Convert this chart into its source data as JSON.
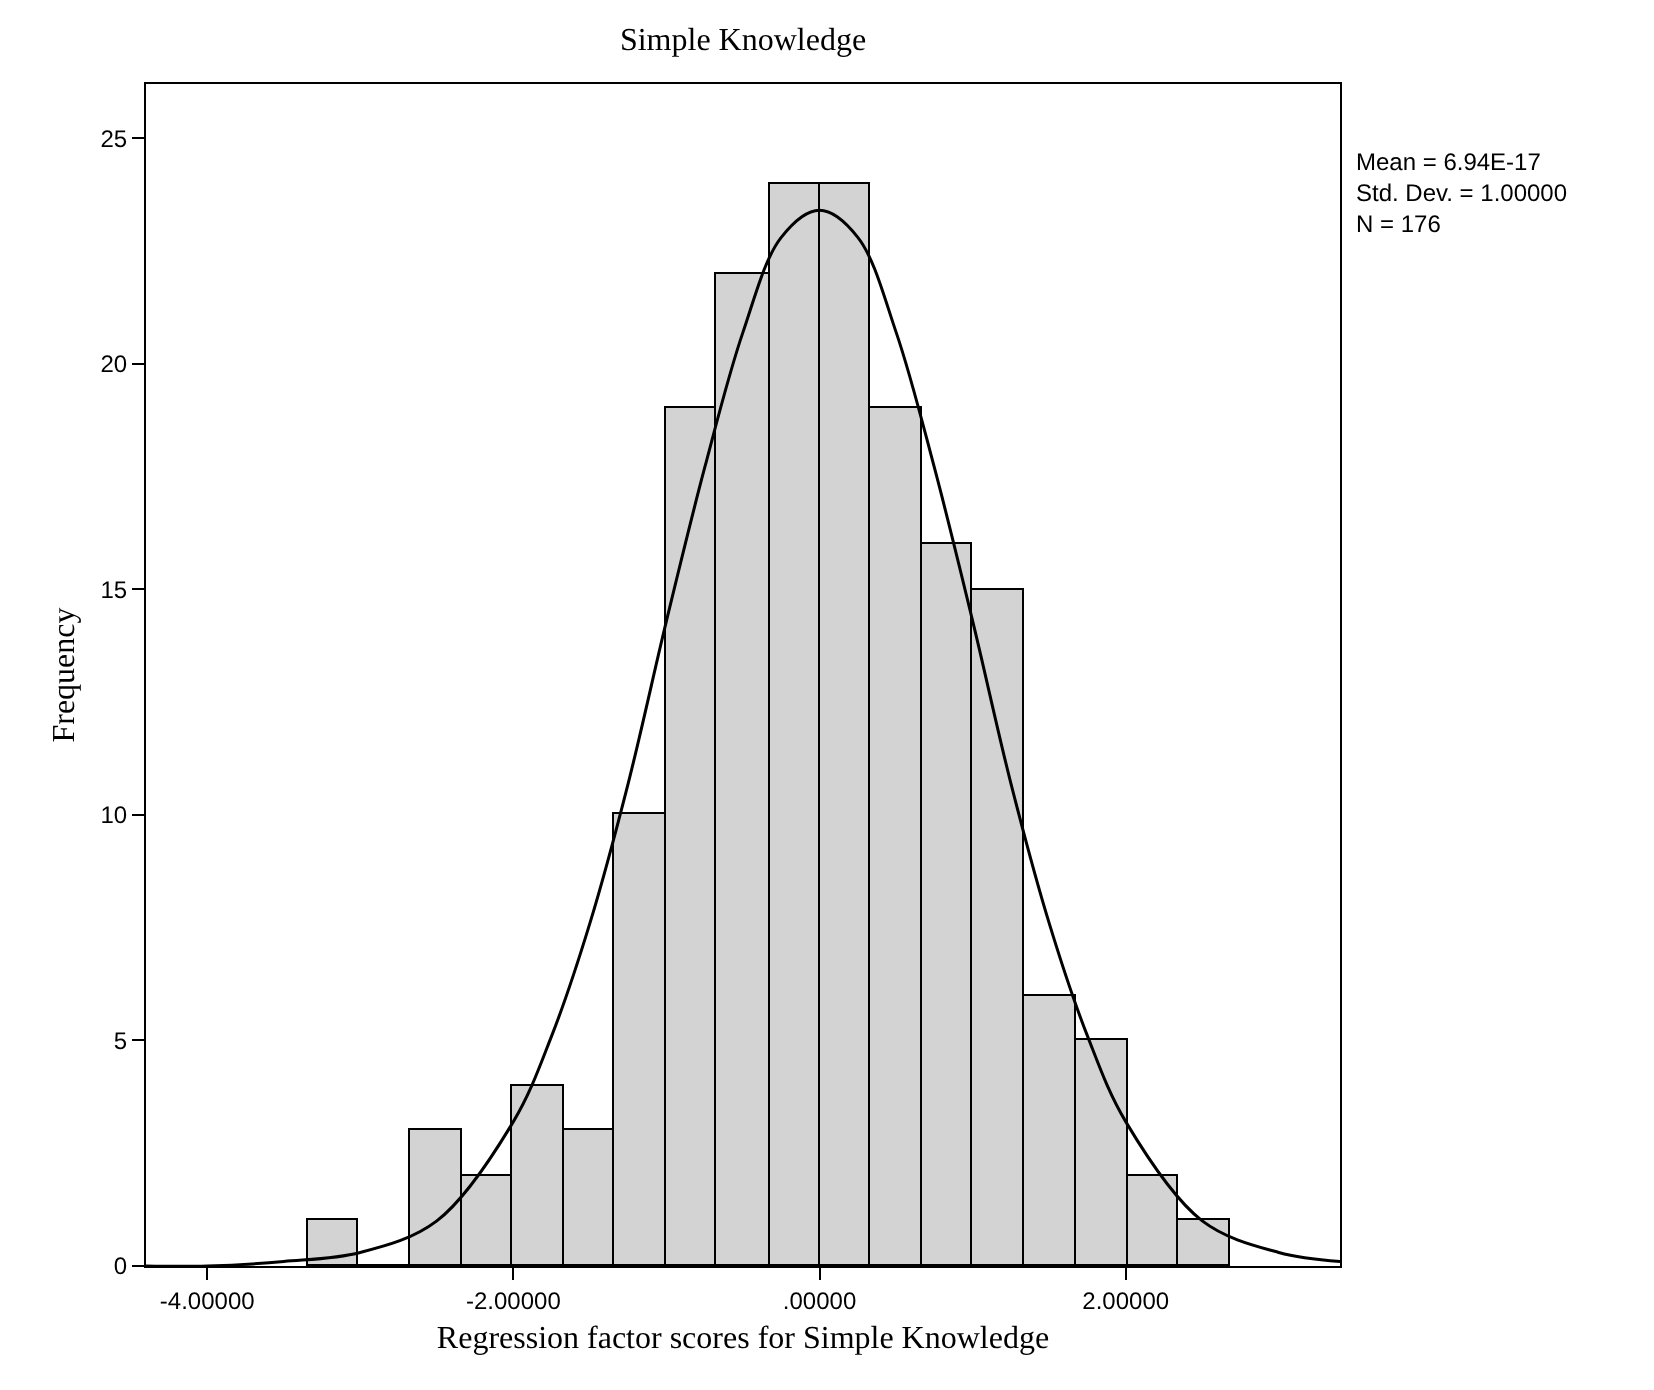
{
  "chart_data": {
    "type": "histogram",
    "title": "Simple Knowledge",
    "xlabel": "Regression factor scores for Simple Knowledge",
    "ylabel": "Frequency",
    "bins": [
      -3.34,
      -3.01,
      -2.68,
      -2.34,
      -2.01,
      -1.67,
      -1.34,
      -1.0,
      -0.67,
      -0.33,
      0,
      0.33,
      0.67,
      1.0,
      1.34,
      1.67,
      2.01,
      2.34,
      2.68
    ],
    "values": [
      1,
      0,
      3,
      2,
      4,
      3,
      10,
      19,
      22,
      24,
      24,
      19,
      16,
      15,
      6,
      5,
      2,
      1
    ],
    "color": "#d3d3d3",
    "series": [
      {
        "type": "line",
        "color": "#000000",
        "x": [
          -4.4,
          -4.0,
          -3.5,
          -3.0,
          -2.5,
          -2.0,
          -1.75,
          -1.5,
          -1.25,
          -1.0,
          -0.75,
          -0.5,
          -0.25,
          0,
          0.25,
          0.5,
          0.75,
          1.0,
          1.25,
          1.5,
          1.75,
          2.0,
          2.5,
          3.0,
          3.4
        ],
        "values": [
          0.0,
          0.0,
          0.1,
          0.3,
          1.0,
          3.2,
          5.1,
          7.6,
          10.7,
          14.3,
          17.7,
          20.7,
          22.8,
          23.4,
          22.8,
          20.7,
          17.7,
          14.3,
          10.7,
          7.6,
          5.1,
          3.2,
          1.0,
          0.3,
          0.1
        ]
      }
    ],
    "xlim": [
      -4.4,
      3.4
    ],
    "xticks": [
      {
        "value": -4,
        "label": "-4.00000"
      },
      {
        "value": -2,
        "label": "-2.00000"
      },
      {
        "value": 0,
        "label": ".00000"
      },
      {
        "value": 2,
        "label": "2.00000"
      }
    ],
    "ylim": [
      0,
      26.2
    ],
    "yticks": [
      0,
      5,
      10,
      15,
      20,
      25
    ],
    "annotations": [
      "Mean = 6.94E-17",
      "Std. Dev. = 1.00000",
      "N = 176"
    ]
  }
}
